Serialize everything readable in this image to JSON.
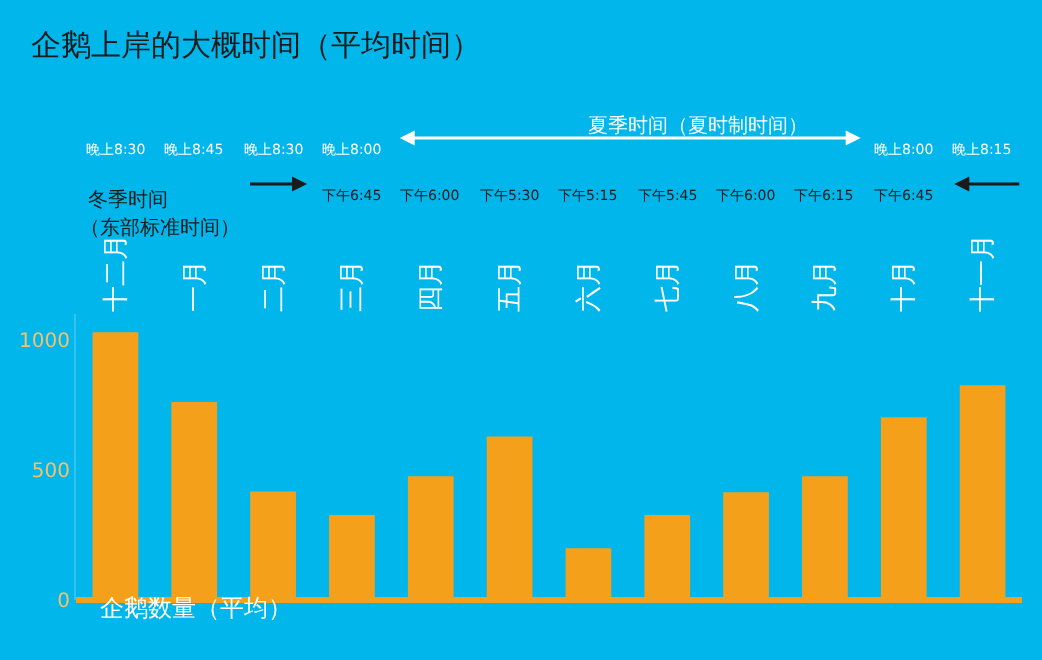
{
  "chart_data": {
    "type": "bar",
    "title": "企鹅上岸的大概时间（平均时间）",
    "xlabel": "企鹅数量（平均）",
    "categories": [
      "十二月",
      "一月",
      "二月",
      "三月",
      "四月",
      "五月",
      "六月",
      "七月",
      "八月",
      "九月",
      "十月",
      "十一月"
    ],
    "values": [
      1030,
      762,
      417,
      327,
      476,
      629,
      199,
      327,
      414,
      476,
      703,
      826
    ],
    "color": "#f5a01a",
    "ylim": [
      0,
      1100
    ],
    "yticks": [
      0,
      500,
      1000
    ],
    "grid": false,
    "legend": false,
    "annotations": [
      "夏季时间（夏时制时间）",
      "冬季时间",
      "（东部标准时间）",
      "晚上8:30",
      "晚上8:45",
      "晚上8:30",
      "晚上8:00",
      "晚上8:00",
      "晚上8:15",
      "下午6:45",
      "下午6:00",
      "下午5:30",
      "下午5:15",
      "下午5:45",
      "下午6:00",
      "下午6:15",
      "下午6:45"
    ]
  }
}
